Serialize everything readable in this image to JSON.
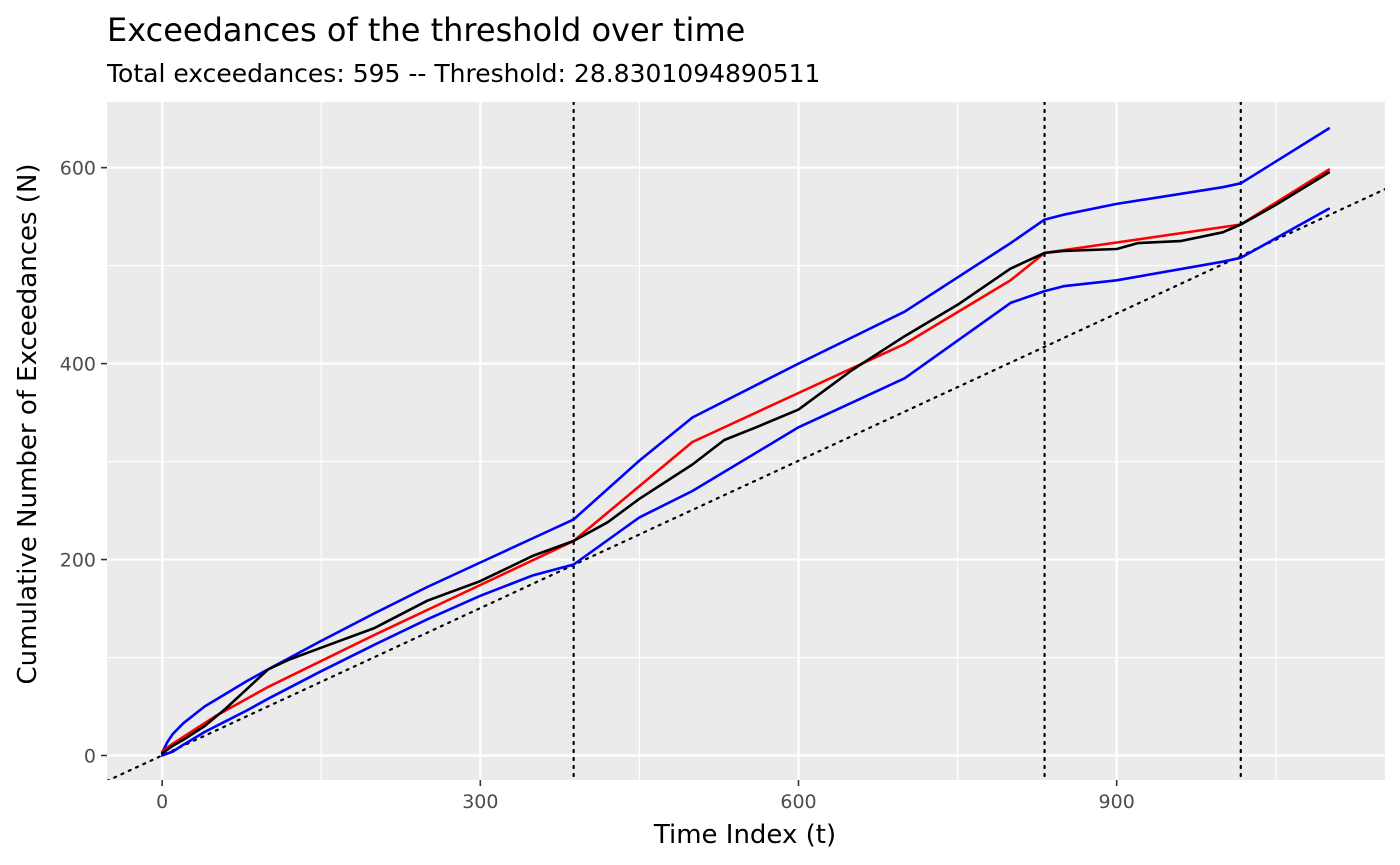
{
  "chart_data": {
    "type": "line",
    "title": "Exceedances of the threshold over time",
    "subtitle": "Total exceedances: 595  -- Threshold: 28.8301094890511",
    "xlabel": "Time Index (t)",
    "ylabel": "Cumulative Number of Exceedances (N)",
    "xlim": [
      -52,
      1153
    ],
    "ylim": [
      -25,
      667
    ],
    "x_ticks": [
      0,
      300,
      600,
      900
    ],
    "x_tick_labels": [
      "0",
      "300",
      "600",
      "900"
    ],
    "y_ticks": [
      0,
      200,
      400,
      600
    ],
    "y_tick_labels": [
      "0",
      "200",
      "400",
      "600"
    ],
    "grid": true,
    "legend": "none",
    "colors": {
      "panel": "#ebebeb",
      "grid": "#ffffff",
      "observed": "#000000",
      "fitted": "#ff0000",
      "bounds": "#0000ff",
      "reference": "#000000",
      "tick_text": "#4d4d4d"
    },
    "change_points": [
      388,
      832,
      1017
    ],
    "reference_line": {
      "x": [
        -52,
        1153
      ],
      "y": [
        -26,
        578
      ]
    },
    "series": [
      {
        "role": "upper-bound",
        "x": [
          0,
          5,
          10,
          20,
          40,
          60,
          80,
          100,
          150,
          200,
          250,
          300,
          350,
          388,
          450,
          500,
          600,
          700,
          800,
          832,
          850,
          900,
          1000,
          1017,
          1100
        ],
        "y": [
          3,
          14,
          22,
          33,
          50,
          63,
          76,
          88,
          117,
          145,
          172,
          197,
          222,
          241,
          301,
          345,
          400,
          453,
          523,
          547,
          552,
          563,
          580,
          584,
          640
        ]
      },
      {
        "role": "fitted",
        "x": [
          0,
          10,
          50,
          100,
          200,
          300,
          388,
          500,
          600,
          700,
          800,
          832,
          1017,
          1100
        ],
        "y": [
          4,
          12,
          40,
          70,
          123,
          174,
          219,
          320,
          370,
          420,
          485,
          513,
          542,
          598
        ]
      },
      {
        "role": "observed",
        "x": [
          0,
          10,
          20,
          40,
          60,
          80,
          100,
          120,
          150,
          200,
          250,
          300,
          350,
          388,
          420,
          450,
          500,
          530,
          560,
          600,
          650,
          700,
          750,
          800,
          832,
          850,
          900,
          920,
          960,
          1000,
          1017,
          1050,
          1100
        ],
        "y": [
          2,
          10,
          16,
          30,
          48,
          68,
          88,
          98,
          110,
          130,
          158,
          178,
          204,
          219,
          238,
          262,
          297,
          322,
          335,
          353,
          393,
          428,
          460,
          497,
          513,
          515,
          517,
          523,
          525,
          534,
          542,
          562,
          595
        ]
      },
      {
        "role": "lower-bound",
        "x": [
          0,
          5,
          10,
          20,
          40,
          60,
          80,
          100,
          150,
          200,
          250,
          300,
          350,
          388,
          450,
          500,
          600,
          700,
          800,
          832,
          850,
          900,
          1000,
          1017,
          1100
        ],
        "y": [
          0,
          2,
          4,
          11,
          24,
          35,
          46,
          58,
          86,
          113,
          139,
          163,
          184,
          195,
          243,
          270,
          335,
          385,
          462,
          474,
          479,
          485,
          504,
          508,
          558
        ]
      }
    ]
  }
}
